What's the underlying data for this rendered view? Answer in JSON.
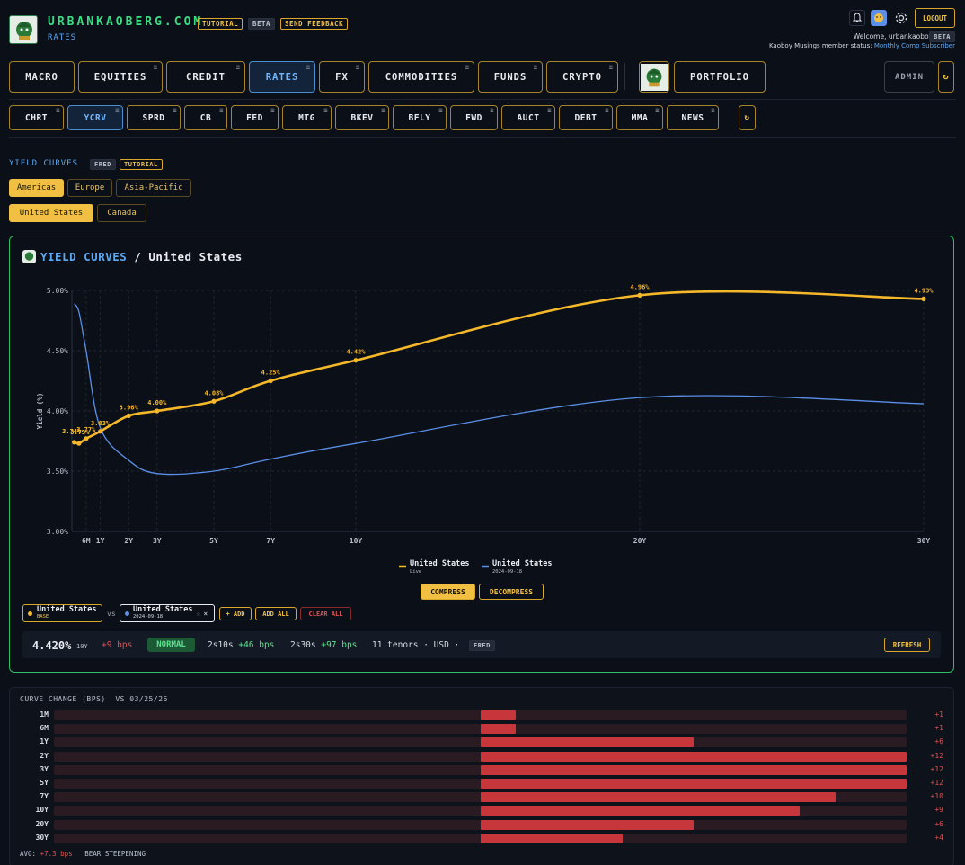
{
  "header": {
    "brand": "URBANKAOBERG.COM",
    "brand_sub": "RATES",
    "tag_tutorial": "TUTORIAL",
    "tag_beta": "BETA",
    "tag_feedback": "SEND FEEDBACK",
    "logout": "LOGOUT",
    "welcome": "Welcome, urbankaoboy",
    "welcome_badge": "BETA",
    "status_label": "Kaoboy Musings member status:",
    "status_value": "Monthly Comp Subscriber",
    "icons": [
      "bell-icon",
      "avatar-icon",
      "gear-icon"
    ]
  },
  "nav": {
    "items": [
      "MACRO",
      "EQUITIES",
      "CREDIT",
      "RATES",
      "FX",
      "COMMODITIES",
      "FUNDS",
      "CRYPTO"
    ],
    "active": "RATES",
    "portfolio": "PORTFOLIO",
    "admin": "ADMIN",
    "menu_glyph": "≡",
    "refresh_glyph": "↻"
  },
  "subnav": {
    "items": [
      "CHRT",
      "YCRV",
      "SPRD",
      "CB",
      "FED",
      "MTG",
      "BKEV",
      "BFLY",
      "FWD",
      "AUCT",
      "DEBT",
      "MMA",
      "NEWS"
    ],
    "active": "YCRV"
  },
  "section": {
    "title": "YIELD CURVES",
    "tag_fred": "FRED",
    "tag_tutorial": "TUTORIAL",
    "regions": [
      "Americas",
      "Europe",
      "Asia-Pacific"
    ],
    "active_region": "Americas",
    "countries": [
      "United States",
      "Canada"
    ],
    "active_country": "United States"
  },
  "card": {
    "title_a": "YIELD CURVES",
    "sep": " / ",
    "title_b": "United States",
    "compress": "COMPRESS",
    "decompress": "DECOMPRESS",
    "base_name": "United States",
    "base_sub": "BASE",
    "vs": "vs",
    "cmp_name": "United States",
    "cmp_sub": "2024-09-18",
    "add": "+ ADD",
    "add_all": "ADD ALL",
    "clear_all": "CLEAR ALL",
    "stats": {
      "yield": "4.420%",
      "tenor": "10Y",
      "change": "+9 bps",
      "regime": "NORMAL",
      "s2s10_label": "2s10s",
      "s2s10": "+46 bps",
      "s2s30_label": "2s30s",
      "s2s30": "+97 bps",
      "meta": "11 tenors · USD ·",
      "source": "FRED",
      "refresh": "REFRESH"
    }
  },
  "chart_data": {
    "type": "line",
    "ylabel": "Yield (%)",
    "ylim": [
      3.0,
      5.0
    ],
    "yticks": [
      3.0,
      3.5,
      4.0,
      4.5,
      5.0
    ],
    "ytick_labels": [
      "3.00%",
      "3.50%",
      "4.00%",
      "4.50%",
      "5.00%"
    ],
    "xlim_years": [
      0,
      30
    ],
    "xticks": [
      {
        "label": "6M",
        "years": 0.5
      },
      {
        "label": "1Y",
        "years": 1
      },
      {
        "label": "2Y",
        "years": 2
      },
      {
        "label": "3Y",
        "years": 3
      },
      {
        "label": "5Y",
        "years": 5
      },
      {
        "label": "7Y",
        "years": 7
      },
      {
        "label": "10Y",
        "years": 10
      },
      {
        "label": "20Y",
        "years": 20
      },
      {
        "label": "30Y",
        "years": 30
      }
    ],
    "grid": true,
    "legend_position": "bottom",
    "series": [
      {
        "name": "United States",
        "sub": "Live",
        "color": "#f5b82a",
        "points": [
          {
            "years": 0.083,
            "value": 3.74,
            "label": "3.74%"
          },
          {
            "years": 0.25,
            "value": 3.73,
            "label": "3.73%"
          },
          {
            "years": 0.5,
            "value": 3.77,
            "label": "3.77%"
          },
          {
            "years": 1,
            "value": 3.83,
            "label": "3.83%"
          },
          {
            "years": 2,
            "value": 3.96,
            "label": "3.96%"
          },
          {
            "years": 3,
            "value": 4.0,
            "label": "4.00%"
          },
          {
            "years": 5,
            "value": 4.08,
            "label": "4.08%"
          },
          {
            "years": 7,
            "value": 4.25,
            "label": "4.25%"
          },
          {
            "years": 10,
            "value": 4.42,
            "label": "4.42%"
          },
          {
            "years": 20,
            "value": 4.96,
            "label": "4.96%"
          },
          {
            "years": 30,
            "value": 4.93,
            "label": "4.93%"
          }
        ]
      },
      {
        "name": "United States",
        "sub": "2024-09-18",
        "color": "#5b8fe8",
        "points": [
          {
            "years": 0.083,
            "value": 4.89
          },
          {
            "years": 0.25,
            "value": 4.82
          },
          {
            "years": 0.5,
            "value": 4.5
          },
          {
            "years": 1,
            "value": 3.86
          },
          {
            "years": 2,
            "value": 3.59
          },
          {
            "years": 3,
            "value": 3.48
          },
          {
            "years": 5,
            "value": 3.5
          },
          {
            "years": 7,
            "value": 3.6
          },
          {
            "years": 10,
            "value": 3.73
          },
          {
            "years": 20,
            "value": 4.11
          },
          {
            "years": 30,
            "value": 4.06
          }
        ]
      }
    ]
  },
  "curve_change": {
    "title": "CURVE CHANGE (BPS)",
    "vs_label": "VS 03/25/26",
    "max_bps": 12,
    "rows": [
      {
        "tenor": "1M",
        "bps": 1,
        "label": "+1"
      },
      {
        "tenor": "6M",
        "bps": 1,
        "label": "+1"
      },
      {
        "tenor": "1Y",
        "bps": 6,
        "label": "+6"
      },
      {
        "tenor": "2Y",
        "bps": 12,
        "label": "+12"
      },
      {
        "tenor": "3Y",
        "bps": 12,
        "label": "+12"
      },
      {
        "tenor": "5Y",
        "bps": 12,
        "label": "+12"
      },
      {
        "tenor": "7Y",
        "bps": 10,
        "label": "+10"
      },
      {
        "tenor": "10Y",
        "bps": 9,
        "label": "+9"
      },
      {
        "tenor": "20Y",
        "bps": 6,
        "label": "+6"
      },
      {
        "tenor": "30Y",
        "bps": 4,
        "label": "+4"
      }
    ],
    "avg_label": "AVG:",
    "avg_value": "+7.3 bps",
    "regime": "BEAR STEEPENING"
  }
}
